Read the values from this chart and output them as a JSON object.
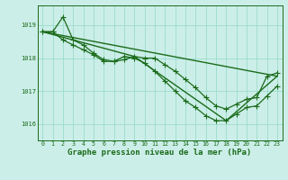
{
  "background_color": "#cceee8",
  "grid_color": "#99ddcc",
  "line_color": "#1a6b1a",
  "title": "Graphe pression niveau de la mer (hPa)",
  "title_fontsize": 6.5,
  "xlim": [
    -0.5,
    23.5
  ],
  "ylim": [
    1015.5,
    1019.6
  ],
  "yticks": [
    1016,
    1017,
    1018,
    1019
  ],
  "xticks": [
    0,
    1,
    2,
    3,
    4,
    5,
    6,
    7,
    8,
    9,
    10,
    11,
    12,
    13,
    14,
    15,
    16,
    17,
    18,
    19,
    20,
    21,
    22,
    23
  ],
  "lines": [
    {
      "x": [
        0,
        1,
        2,
        3,
        4,
        5,
        6,
        7,
        8,
        9,
        10,
        11,
        12,
        13,
        14,
        15,
        16,
        17,
        18,
        19,
        20,
        21,
        22,
        23
      ],
      "y": [
        1018.8,
        1018.8,
        1019.25,
        1018.55,
        1018.4,
        1018.15,
        1017.95,
        1017.9,
        1017.95,
        1018.05,
        1018.0,
        1018.0,
        1017.8,
        1017.6,
        1017.35,
        1017.1,
        1016.8,
        1016.55,
        1016.45,
        1016.6,
        1016.75,
        1016.8,
        1017.45,
        1017.55
      ],
      "marker": "+",
      "ms": 4,
      "lw": 0.9
    },
    {
      "x": [
        0,
        1,
        2,
        3,
        4,
        5,
        6,
        7,
        8,
        9,
        10,
        11,
        12,
        13,
        14,
        15,
        16,
        17,
        18,
        19,
        20,
        21,
        22,
        23
      ],
      "y": [
        1018.8,
        1018.8,
        1018.55,
        1018.4,
        1018.25,
        1018.1,
        1017.9,
        1017.9,
        1018.05,
        1018.0,
        1017.85,
        1017.6,
        1017.3,
        1017.0,
        1016.7,
        1016.5,
        1016.25,
        1016.1,
        1016.1,
        1016.3,
        1016.5,
        1016.55,
        1016.85,
        1017.15
      ],
      "marker": "+",
      "ms": 4,
      "lw": 0.9
    },
    {
      "x": [
        0,
        23
      ],
      "y": [
        1018.8,
        1017.45
      ],
      "marker": null,
      "ms": 0,
      "lw": 1.0
    },
    {
      "x": [
        0,
        9,
        18,
        23
      ],
      "y": [
        1018.8,
        1018.05,
        1016.1,
        1017.45
      ],
      "marker": null,
      "ms": 0,
      "lw": 1.0
    }
  ]
}
